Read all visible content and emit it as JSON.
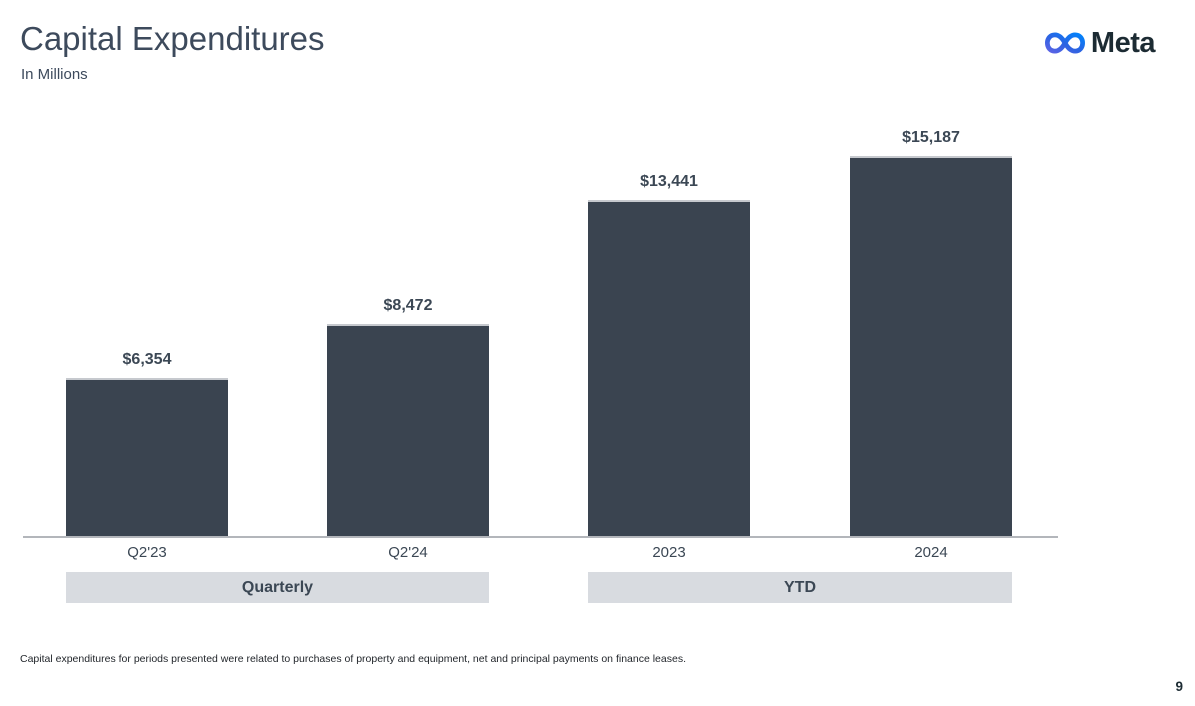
{
  "header": {
    "title": "Capital Expenditures",
    "subtitle": "In Millions",
    "logo_text": "Meta"
  },
  "chart_data": {
    "type": "bar",
    "title": "Capital Expenditures",
    "subtitle": "In Millions",
    "unit": "USD millions",
    "categories": [
      "Q2'23",
      "Q2'24",
      "2023",
      "2024"
    ],
    "values": [
      6354,
      8472,
      13441,
      15187
    ],
    "value_labels": [
      "$6,354",
      "$8,472",
      "$13,441",
      "$15,187"
    ],
    "groups": [
      {
        "label": "Quarterly",
        "span": [
          0,
          1
        ]
      },
      {
        "label": "YTD",
        "span": [
          2,
          3
        ]
      }
    ],
    "ylim": [
      0,
      15187
    ],
    "grid": false,
    "legend": false,
    "bar_color": "#3a4450"
  },
  "footnote": "Capital expenditures for periods presented were related to purchases of property and equipment, net and principal payments on finance leases.",
  "page_number": "9",
  "colors": {
    "bar": "#3a4450",
    "bar_top_edge": "#c6c9ce",
    "band_background": "#d8dbe0",
    "axis_line": "#b3b6bb",
    "title_text": "#3d4a5c",
    "label_text": "#3b4754",
    "logo_text": "#1c2b33",
    "logo_gradient_start": "#5b63e5",
    "logo_gradient_end": "#0082fb"
  },
  "icons": {
    "logo_symbol": "meta-infinity-icon"
  }
}
